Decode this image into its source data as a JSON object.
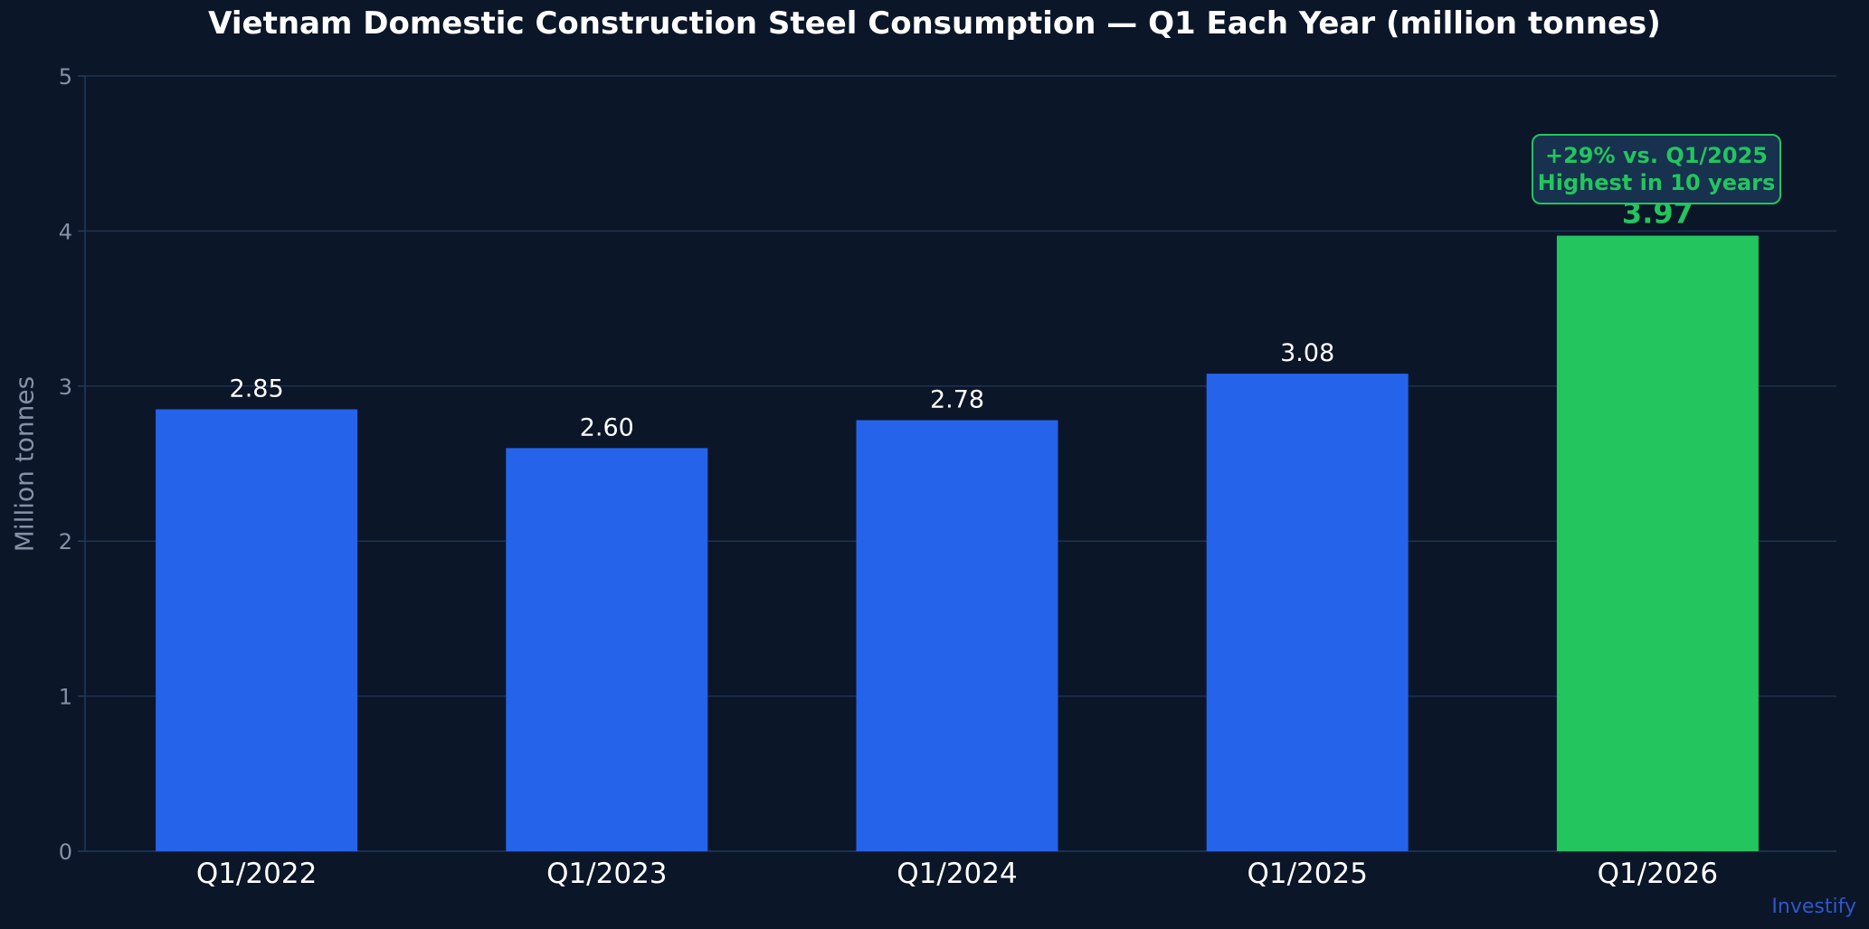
{
  "chart_data": {
    "type": "bar",
    "title": "Vietnam Domestic Construction Steel Consumption — Q1 Each Year (million tonnes)",
    "xlabel": "",
    "ylabel": "Million tonnes",
    "ylim": [
      0,
      5
    ],
    "yticks": [
      "0",
      "1",
      "2",
      "3",
      "4",
      "5"
    ],
    "grid": true,
    "categories": [
      "Q1/2022",
      "Q1/2023",
      "Q1/2024",
      "Q1/2025",
      "Q1/2026"
    ],
    "values": [
      2.85,
      2.6,
      2.78,
      3.08,
      3.97
    ],
    "value_labels": [
      "2.85",
      "2.60",
      "2.78",
      "3.08",
      "3.97"
    ],
    "highlight_index": 4,
    "colors": {
      "bar": "#2563eb",
      "highlight": "#22c55e",
      "background": "#0b1628",
      "grid": "#1c3353",
      "axis_text": "#8591a6",
      "category_text": "#ffffff"
    },
    "annotation": {
      "line1": "+29% vs. Q1/2025",
      "line2": "Highest in 10 years"
    }
  },
  "watermark": "Investify"
}
